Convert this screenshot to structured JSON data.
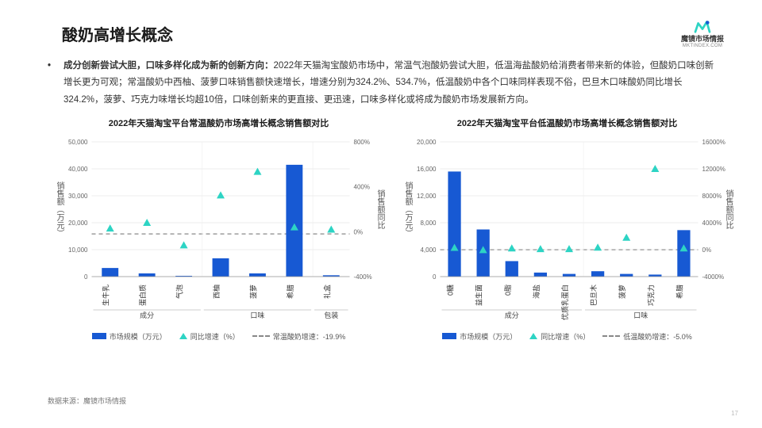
{
  "header": {
    "title": "酸奶高增长概念",
    "brand_name": "魔镜市场情报",
    "brand_sub": "MKTINDEX.COM",
    "logo_color_1": "#2dd4c4",
    "logo_color_2": "#1759d3"
  },
  "paragraph": {
    "bullet": "•",
    "lead_bold": "成分创新尝试大胆，口味多样化成为新的创新方向：",
    "body": "2022年天猫淘宝酸奶市场中，常温气泡酸奶尝试大胆，低温海盐酸奶给消费者带来新的体验，但酸奶口味创新增长更为可观；常温酸奶中西柚、菠萝口味销售额快速增长，增速分别为324.2%、534.7%，低温酸奶中各个口味同样表现不俗，巴旦木口味酸奶同比增长324.2%，菠萝、巧克力味增长均超10倍，口味创新来的更直接、更迅速，口味多样化或将成为酸奶市场发展新方向。"
  },
  "chart_left": {
    "title": "2022年天猫淘宝平台常温酸奶市场高增长概念销售额对比",
    "y1_label": "销售额（万元）",
    "y2_label": "销售额同比",
    "y1_max": 50000,
    "y1_step": 10000,
    "y2_min": -400,
    "y2_max": 800,
    "y2_step": 400,
    "baseline_label": "常温酸奶增速：-19.9%",
    "baseline_value": -19.9,
    "groups": [
      {
        "name": "成分",
        "items": [
          {
            "label": "生牛乳",
            "bar": 3200,
            "rate": 30
          },
          {
            "label": "蛋白质",
            "bar": 1200,
            "rate": 80
          },
          {
            "label": "气泡",
            "bar": 300,
            "rate": -120
          }
        ]
      },
      {
        "name": "口味",
        "items": [
          {
            "label": "西柚",
            "bar": 6800,
            "rate": 324.2
          },
          {
            "label": "菠萝",
            "bar": 1200,
            "rate": 534.7
          },
          {
            "label": "希腊",
            "bar": 41500,
            "rate": 40
          }
        ]
      },
      {
        "name": "包装",
        "items": [
          {
            "label": "礼盒",
            "bar": 500,
            "rate": 20
          }
        ]
      }
    ],
    "bar_color": "#1759d3",
    "marker_color": "#2dd4c4",
    "grid_color": "#d9d9d9",
    "baseline_color": "#888888",
    "legend": {
      "bar": "市场规模（万元）",
      "marker": "同比增速（%）",
      "dash": "常温酸奶增速：-19.9%"
    }
  },
  "chart_right": {
    "title": "2022年天猫淘宝平台低温酸奶市场高增长概念销售额对比",
    "y1_label": "销售额（万元）",
    "y2_label": "销售额同比",
    "y1_max": 20000,
    "y1_step": 4000,
    "y2_min": -4000,
    "y2_max": 16000,
    "y2_step": 4000,
    "baseline_label": "低温酸奶增速：-5.0%",
    "baseline_value": -5.0,
    "groups": [
      {
        "name": "成分",
        "items": [
          {
            "label": "0糖",
            "bar": 15600,
            "rate": 300
          },
          {
            "label": "益生菌",
            "bar": 7000,
            "rate": -50
          },
          {
            "label": "0脂",
            "bar": 2300,
            "rate": 200
          },
          {
            "label": "海盐",
            "bar": 600,
            "rate": 100
          },
          {
            "label": "优质乳蛋白",
            "bar": 400,
            "rate": 100
          }
        ]
      },
      {
        "name": "口味",
        "items": [
          {
            "label": "巴旦木",
            "bar": 800,
            "rate": 324.2
          },
          {
            "label": "菠萝",
            "bar": 400,
            "rate": 1800
          },
          {
            "label": "巧克力",
            "bar": 300,
            "rate": 12000
          },
          {
            "label": "希腊",
            "bar": 6900,
            "rate": 200
          }
        ]
      }
    ],
    "bar_color": "#1759d3",
    "marker_color": "#2dd4c4",
    "grid_color": "#d9d9d9",
    "baseline_color": "#888888",
    "legend": {
      "bar": "市场规模（万元）",
      "marker": "同比增速（%）",
      "dash": "低温酸奶增速：-5.0%"
    }
  },
  "source": "数据来源：魔镜市场情报",
  "page_number": "17"
}
